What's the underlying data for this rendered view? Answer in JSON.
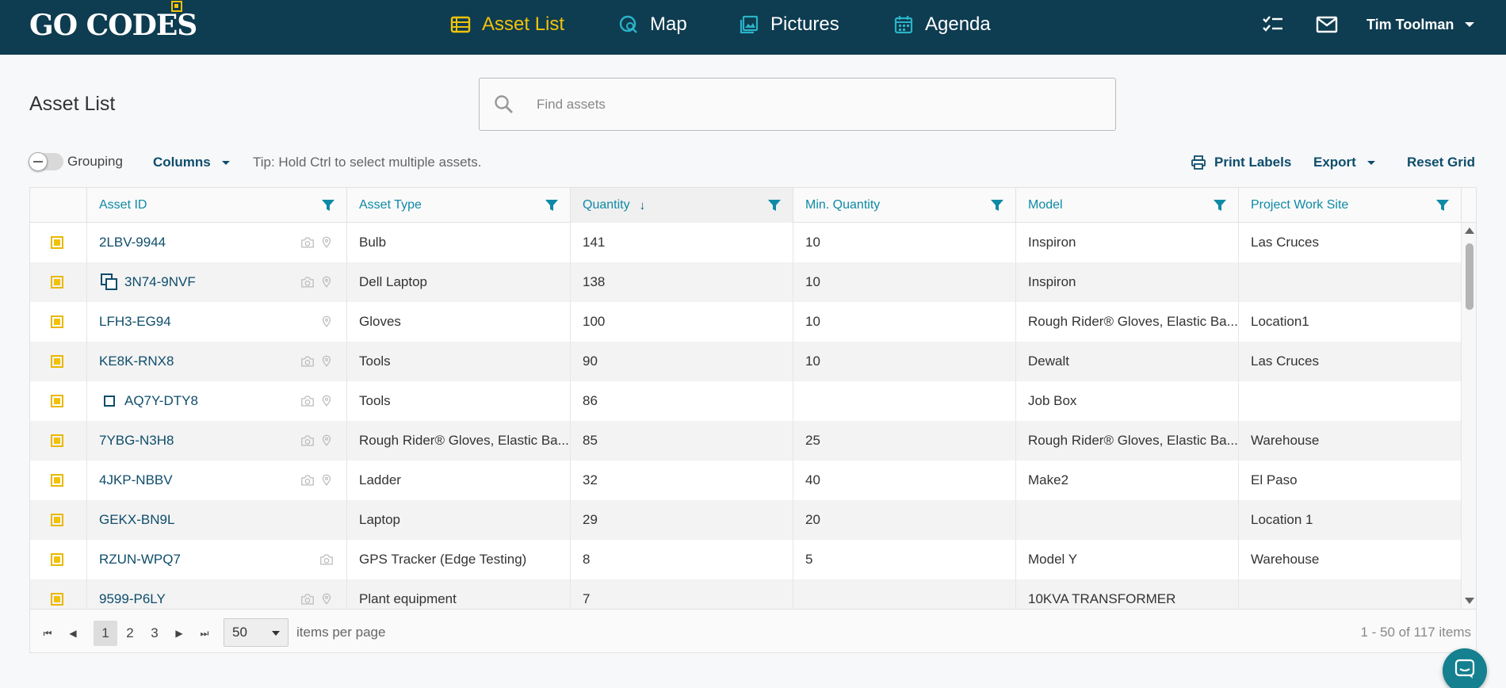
{
  "brand": {
    "logo_text": "GO CODES",
    "accent": "#f2c20a",
    "nav_bg": "#0e3c50"
  },
  "nav": {
    "items": [
      {
        "label": "Asset List",
        "icon": "list-icon",
        "active": true
      },
      {
        "label": "Map",
        "icon": "map-search-icon",
        "active": false
      },
      {
        "label": "Pictures",
        "icon": "pictures-icon",
        "active": false
      },
      {
        "label": "Agenda",
        "icon": "calendar-icon",
        "active": false
      }
    ],
    "right_icons": [
      "checklist-icon",
      "mail-icon"
    ],
    "user_name": "Tim Toolman"
  },
  "page": {
    "title": "Asset List",
    "search_placeholder": "Find assets"
  },
  "toolbar": {
    "grouping_label": "Grouping",
    "grouping_on": false,
    "columns_label": "Columns",
    "tip": "Tip: Hold Ctrl to select multiple assets.",
    "print_labels": "Print Labels",
    "export": "Export",
    "reset_grid": "Reset Grid"
  },
  "grid": {
    "columns": [
      "Asset ID",
      "Asset Type",
      "Quantity",
      "Min. Quantity",
      "Model",
      "Project Work Site"
    ],
    "sorted_column": "Quantity",
    "sort_direction": "descending",
    "rows": [
      {
        "id": "2LBV-9944",
        "type": "Bulb",
        "qty": "141",
        "min": "10",
        "model": "Inspiron",
        "site": "Las Cruces",
        "icons": [
          "camera-icon",
          "location-pin-icon"
        ],
        "prefix": ""
      },
      {
        "id": "3N74-9NVF",
        "type": "Dell Laptop",
        "qty": "138",
        "min": "10",
        "model": "Inspiron",
        "site": "",
        "icons": [
          "camera-icon",
          "location-pin-icon"
        ],
        "prefix": "copy-icon"
      },
      {
        "id": "LFH3-EG94",
        "type": "Gloves",
        "qty": "100",
        "min": "10",
        "model": "Rough Rider® Gloves, Elastic Ba...",
        "site": "Location1",
        "icons": [
          "location-pin-icon"
        ],
        "prefix": ""
      },
      {
        "id": "KE8K-RNX8",
        "type": "Tools",
        "qty": "90",
        "min": "10",
        "model": "Dewalt",
        "site": "Las Cruces",
        "icons": [
          "camera-icon",
          "location-pin-icon"
        ],
        "prefix": ""
      },
      {
        "id": "AQ7Y-DTY8",
        "type": "Tools",
        "qty": "86",
        "min": "",
        "model": "Job Box",
        "site": "",
        "icons": [
          "camera-icon",
          "location-pin-icon"
        ],
        "prefix": "square-icon"
      },
      {
        "id": "7YBG-N3H8",
        "type": "Rough Rider® Gloves, Elastic Ba...",
        "qty": "85",
        "min": "25",
        "model": "Rough Rider® Gloves, Elastic Ba...",
        "site": "Warehouse",
        "icons": [
          "camera-icon",
          "location-pin-icon"
        ],
        "prefix": ""
      },
      {
        "id": "4JKP-NBBV",
        "type": "Ladder",
        "qty": "32",
        "min": "40",
        "model": "Make2",
        "site": "El Paso",
        "icons": [
          "camera-icon",
          "location-pin-icon"
        ],
        "prefix": ""
      },
      {
        "id": "GEKX-BN9L",
        "type": "Laptop",
        "qty": "29",
        "min": "20",
        "model": "",
        "site": "Location 1",
        "icons": [],
        "prefix": ""
      },
      {
        "id": "RZUN-WPQ7",
        "type": "GPS Tracker (Edge Testing)",
        "qty": "8",
        "min": "5",
        "model": "Model Y",
        "site": "Warehouse",
        "icons": [
          "camera-icon"
        ],
        "prefix": ""
      },
      {
        "id": "9599-P6LY",
        "type": "Plant equipment",
        "qty": "7",
        "min": "",
        "model": "10KVA TRANSFORMER",
        "site": "",
        "icons": [
          "camera-icon",
          "location-pin-icon"
        ],
        "prefix": ""
      }
    ]
  },
  "pager": {
    "pages": [
      "1",
      "2",
      "3"
    ],
    "current_page": "1",
    "per_page": "50",
    "items_per_page_label": "items per page",
    "range_text": "1 - 50 of 117 items"
  }
}
